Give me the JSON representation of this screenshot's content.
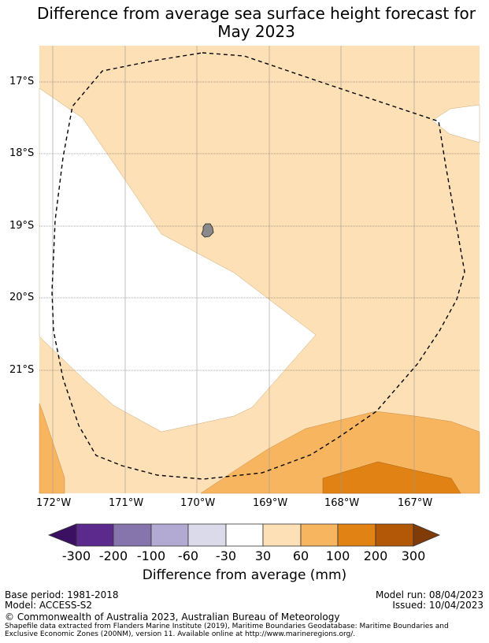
{
  "title_line1": "Difference from average sea surface height forecast for",
  "title_line2": "May 2023",
  "lat_labels": [
    "17°S",
    "18°S",
    "19°S",
    "20°S",
    "21°S"
  ],
  "lon_labels": [
    "172°W",
    "171°W",
    "170°W",
    "169°W",
    "168°W",
    "167°W"
  ],
  "colorbar": {
    "ticks": [
      "-300",
      "-200",
      "-100",
      "-60",
      "-30",
      "30",
      "60",
      "100",
      "200",
      "300"
    ],
    "label": "Difference from average (mm)",
    "colors": [
      "#3b1063",
      "#5b2a8c",
      "#8674ad",
      "#b2aad2",
      "#dadaeb",
      "#ffffff",
      "#fde0b5",
      "#f8b560",
      "#e08214",
      "#b35806",
      "#7f3b08"
    ]
  },
  "footer": {
    "base_period": "Base period: 1981-2018",
    "model": "Model: ACCESS-S2",
    "model_run": "Model run: 08/04/2023",
    "issued": "Issued: 10/04/2023",
    "copyright": "© Commonwealth of Australia 2023, Australian Bureau of Meteorology",
    "shapefile_line1": "Shapefile data extracted from Flanders Marine Institute (2019), Maritime Boundaries Geodatabase: Maritime Boundaries and",
    "shapefile_line2": "Exclusive Economic Zones (200NM), version 11. Available online at http://www.marineregions.org/."
  }
}
